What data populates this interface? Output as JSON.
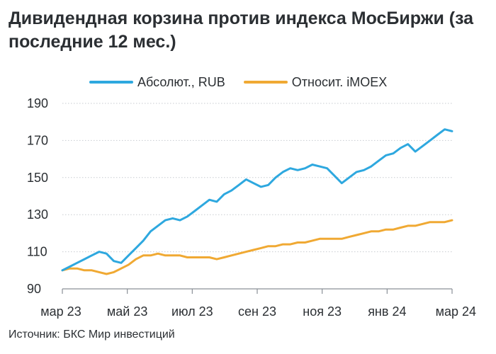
{
  "header": {
    "title": "Дивидендная корзина против индекса МосБиржи (за последние 12 мес.)"
  },
  "footer": {
    "source": "Источник: БКС Мир инвестиций"
  },
  "chart_data": {
    "type": "line",
    "title": "Дивидендная корзина против индекса МосБиржи (за последние 12 мес.)",
    "xlabel": "",
    "ylabel": "",
    "ylim": [
      90,
      190
    ],
    "y_ticks": [
      90,
      110,
      130,
      150,
      170,
      190
    ],
    "x_tick_labels": [
      "мар 23",
      "май 23",
      "июл 23",
      "сен 23",
      "ноя 23",
      "янв 24",
      "мар 24"
    ],
    "grid": true,
    "legend_position": "top",
    "series": [
      {
        "name": "Абсолют., RUB",
        "color": "#2ea8df",
        "values": [
          100,
          102,
          104,
          106,
          108,
          110,
          109,
          105,
          104,
          108,
          112,
          116,
          121,
          124,
          127,
          128,
          127,
          129,
          132,
          135,
          138,
          137,
          141,
          143,
          146,
          149,
          147,
          145,
          146,
          150,
          153,
          155,
          154,
          155,
          157,
          156,
          155,
          151,
          147,
          150,
          153,
          154,
          156,
          159,
          162,
          163,
          166,
          168,
          164,
          167,
          170,
          173,
          176,
          175
        ]
      },
      {
        "name": "Относит. iMOEX",
        "color": "#f0a933",
        "values": [
          100,
          101,
          101,
          100,
          100,
          99,
          98,
          99,
          101,
          103,
          106,
          108,
          108,
          109,
          108,
          108,
          108,
          107,
          107,
          107,
          107,
          106,
          107,
          108,
          109,
          110,
          111,
          112,
          113,
          113,
          114,
          114,
          115,
          115,
          116,
          117,
          117,
          117,
          117,
          118,
          119,
          120,
          121,
          121,
          122,
          122,
          123,
          124,
          124,
          125,
          126,
          126,
          126,
          127
        ]
      }
    ]
  }
}
